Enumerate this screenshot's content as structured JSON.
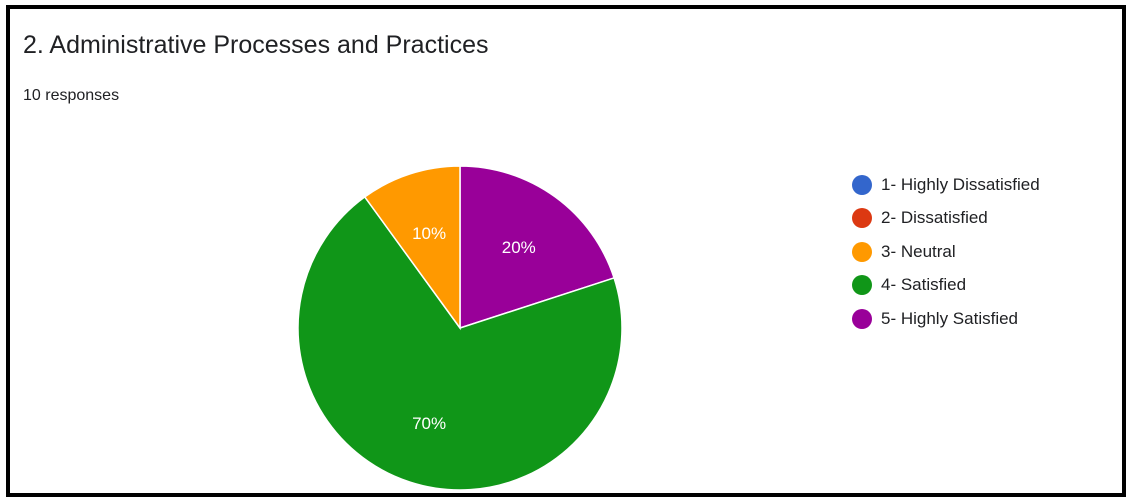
{
  "header": {
    "title": "2. Administrative Processes and Practices",
    "responses": "10 responses"
  },
  "chart_data": {
    "type": "pie",
    "title": "2. Administrative Processes and Practices",
    "subtitle": "10 responses",
    "legend_position": "right",
    "categories": [
      "1- Highly Dissatisfied",
      "2- Dissatisfied",
      "3- Neutral",
      "4- Satisfied",
      "5- Highly Satisfied"
    ],
    "values": [
      0,
      0,
      10,
      70,
      20
    ],
    "labels": [
      "",
      "",
      "10%",
      "70%",
      "20%"
    ],
    "colors": [
      "#3366cc",
      "#dc3912",
      "#ff9900",
      "#109618",
      "#990099"
    ]
  }
}
